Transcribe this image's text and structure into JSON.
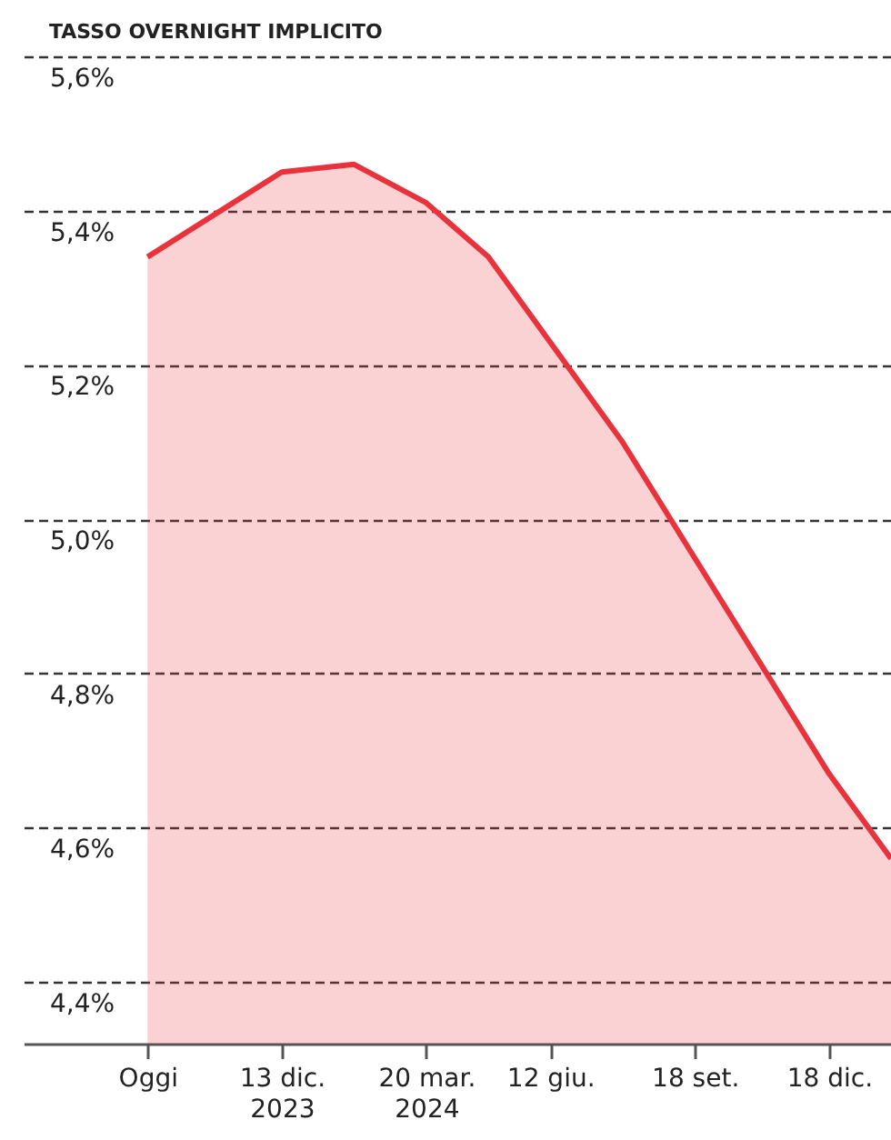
{
  "chart_data": {
    "type": "area",
    "title": "TASSO OVERNIGHT IMPLICITO",
    "x": [
      "2023-09-13",
      "2023-12-13",
      "2024-01-31",
      "2024-03-20",
      "2024-05-01",
      "2024-07-31",
      "2024-12-18",
      "2025-01-29"
    ],
    "series": [
      {
        "color": "#e8323c",
        "values": [
          5.34,
          5.45,
          5.46,
          5.41,
          5.34,
          5.1,
          4.67,
          4.56
        ]
      }
    ],
    "xlim": [
      "2023-06-21",
      "2025-01-29"
    ],
    "xticks": [
      {
        "value": "2023-09-13",
        "label": "Oggi"
      },
      {
        "value": "2023-12-13",
        "label": "13 dic.\n2023"
      },
      {
        "value": "2024-03-20",
        "label": "20 mar.\n2024"
      },
      {
        "value": "2024-06-12",
        "label": "12 giu."
      },
      {
        "value": "2024-09-18",
        "label": "18 set."
      },
      {
        "value": "2024-12-18",
        "label": "18 dic."
      }
    ],
    "ylim": [
      4.32,
      5.6
    ],
    "yticks": [
      {
        "value": 4.4,
        "label": "4,4%"
      },
      {
        "value": 4.6,
        "label": "4,6%"
      },
      {
        "value": 4.8,
        "label": "4,8%"
      },
      {
        "value": 5.0,
        "label": "5,0%"
      },
      {
        "value": 5.2,
        "label": "5,2%"
      },
      {
        "value": 5.4,
        "label": "5,4%"
      },
      {
        "value": 5.6,
        "label": "5,6%"
      }
    ],
    "grid": "y"
  }
}
